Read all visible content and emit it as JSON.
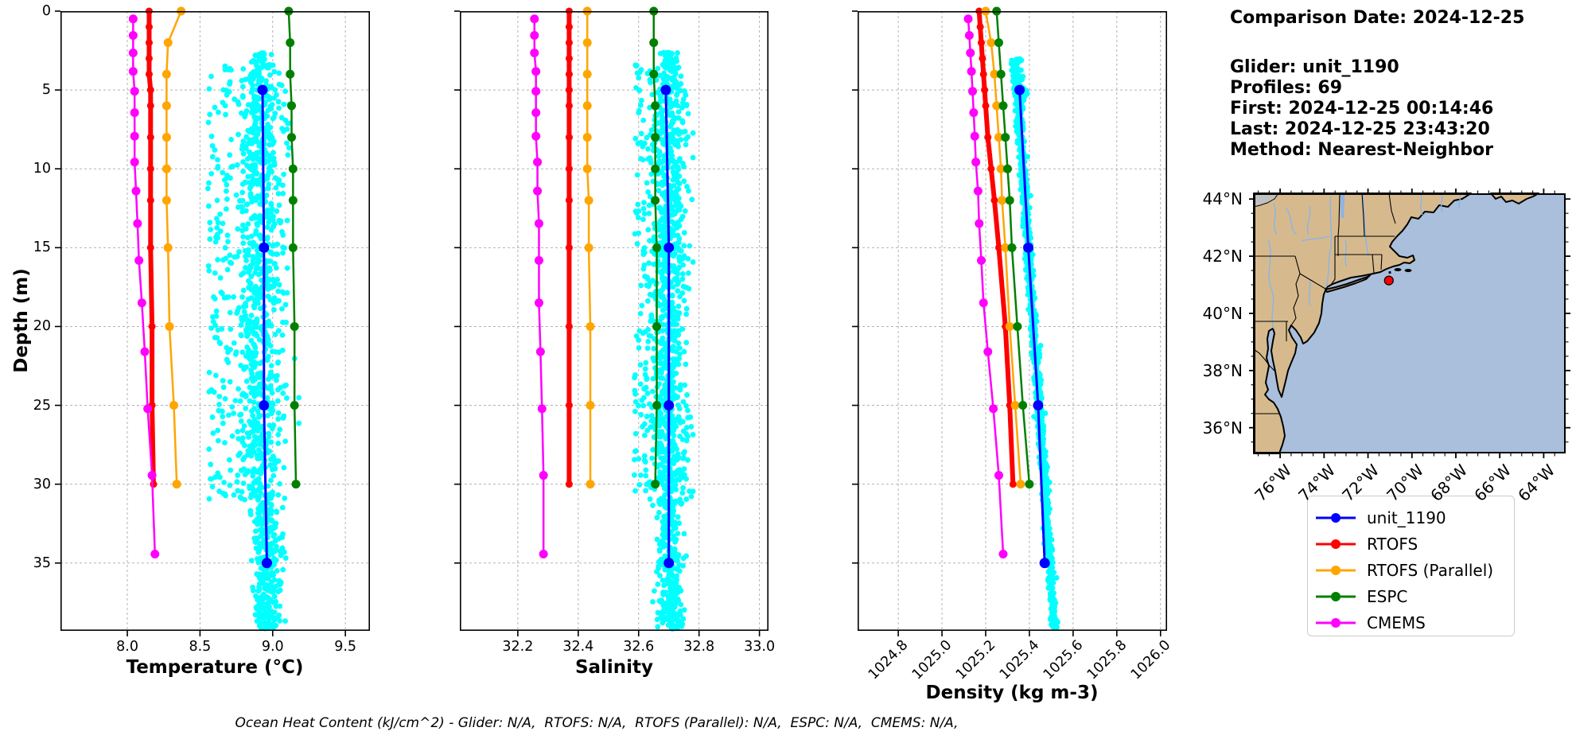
{
  "info_panel": {
    "lines": [
      "Comparison Date: 2024-12-25",
      "Glider: unit_1190",
      "Profiles: 69",
      "First: 2024-12-25 00:14:46",
      "Last: 2024-12-25 23:43:20",
      "Method: Nearest-Neighbor"
    ]
  },
  "footer": {
    "text": "Ocean Heat Content (kJ/cm^2) - Glider: N/A,  RTOFS: N/A,  RTOFS (Parallel): N/A,  ESPC: N/A,  CMEMS: N/A,"
  },
  "legend": {
    "entries": [
      {
        "label": "unit_1190",
        "color": "#0000ff"
      },
      {
        "label": "RTOFS",
        "color": "#ff0000"
      },
      {
        "label": "RTOFS (Parallel)",
        "color": "#ffa500"
      },
      {
        "label": "ESPC",
        "color": "#008000"
      },
      {
        "label": "CMEMS",
        "color": "#ff00ff"
      }
    ]
  },
  "chart_data": [
    {
      "type": "line",
      "name": "temperature-profile",
      "xlabel": "Temperature (°C)",
      "ylabel": "Depth (m)",
      "xlim": [
        7.54,
        9.669
      ],
      "ylim": [
        0,
        39.3
      ],
      "grid": true,
      "xticks": [
        8.0,
        8.5,
        9.0,
        9.5
      ],
      "xtick_labels": [
        "8.0",
        "8.5",
        "9.0",
        "9.5"
      ],
      "yticks": [
        0,
        5,
        10,
        15,
        20,
        25,
        30,
        35
      ],
      "rotate_xticks": false,
      "series": [
        {
          "name": "unit_1190",
          "color": "#0000ff",
          "lw": 3,
          "ms": 6.5,
          "depths": [
            5,
            15,
            25,
            35
          ],
          "values": [
            8.93,
            8.94,
            8.94,
            8.96
          ]
        },
        {
          "name": "RTOFS",
          "color": "#ff0000",
          "lw": 6,
          "ms": 4.5,
          "depths": [
            0,
            1,
            2,
            3,
            4,
            5,
            6,
            8,
            10,
            12,
            15,
            20,
            25,
            30
          ],
          "values": [
            8.15,
            8.15,
            8.15,
            8.15,
            8.15,
            8.16,
            8.16,
            8.16,
            8.16,
            8.16,
            8.16,
            8.17,
            8.17,
            8.18
          ]
        },
        {
          "name": "RTOFS (Parallel)",
          "color": "#ffa500",
          "lw": 2.5,
          "ms": 5.5,
          "depths": [
            0,
            2,
            4,
            6,
            8,
            10,
            12,
            15,
            20,
            25,
            30
          ],
          "values": [
            8.37,
            8.28,
            8.27,
            8.27,
            8.27,
            8.27,
            8.27,
            8.28,
            8.29,
            8.32,
            8.34
          ]
        },
        {
          "name": "ESPC",
          "color": "#008000",
          "lw": 2.5,
          "ms": 5.5,
          "depths": [
            0,
            2,
            4,
            6,
            8,
            10,
            12,
            15,
            20,
            25,
            30
          ],
          "values": [
            9.11,
            9.12,
            9.12,
            9.13,
            9.13,
            9.14,
            9.14,
            9.14,
            9.15,
            9.15,
            9.16
          ]
        },
        {
          "name": "CMEMS",
          "color": "#ff00ff",
          "lw": 2.5,
          "ms": 5.5,
          "depths": [
            0.49,
            1.54,
            2.65,
            3.82,
            5.08,
            6.44,
            7.93,
            9.57,
            11.41,
            13.47,
            15.81,
            18.5,
            21.6,
            25.21,
            29.44,
            34.43
          ],
          "values": [
            8.04,
            8.04,
            8.04,
            8.04,
            8.05,
            8.05,
            8.05,
            8.05,
            8.06,
            8.07,
            8.08,
            8.1,
            8.12,
            8.14,
            8.17,
            8.19
          ]
        }
      ],
      "scatter": {
        "name": "glider-raw-points",
        "color": "#00ffff",
        "r": 3.4,
        "seed": 42,
        "bands": [
          {
            "n": 950,
            "depth": [
              2.6,
              31.0
            ],
            "type": "gauss",
            "center": [
              8.92,
              8.9
            ],
            "sigma": 0.085,
            "clip": [
              8.58,
              9.18
            ],
            "taper": true
          },
          {
            "n": 130,
            "depth": [
              3.0,
              31.0
            ],
            "type": "uniform",
            "range": [
              8.55,
              8.72
            ]
          },
          {
            "n": 300,
            "depth": [
              31.0,
              39.2
            ],
            "type": "gauss",
            "center": [
              8.95,
              8.97
            ],
            "sigma": 0.05,
            "clip": [
              8.75,
              9.12
            ]
          }
        ]
      }
    },
    {
      "type": "line",
      "name": "salinity-profile",
      "xlabel": "Salinity",
      "ylabel": "",
      "xlim": [
        32.008,
        33.03
      ],
      "ylim": [
        0,
        39.3
      ],
      "grid": true,
      "xticks": [
        32.2,
        32.4,
        32.6,
        32.8,
        33.0
      ],
      "xtick_labels": [
        "32.2",
        "32.4",
        "32.6",
        "32.8",
        "33.0"
      ],
      "yticks": [
        0,
        5,
        10,
        15,
        20,
        25,
        30,
        35
      ],
      "rotate_xticks": false,
      "series": [
        {
          "name": "unit_1190",
          "color": "#0000ff",
          "lw": 3,
          "ms": 6.5,
          "depths": [
            5,
            15,
            25,
            35
          ],
          "values": [
            32.69,
            32.7,
            32.7,
            32.7
          ]
        },
        {
          "name": "RTOFS",
          "color": "#ff0000",
          "lw": 6,
          "ms": 4.5,
          "depths": [
            0,
            1,
            2,
            3,
            4,
            5,
            6,
            8,
            10,
            12,
            15,
            20,
            25,
            30
          ],
          "values": [
            32.37,
            32.37,
            32.37,
            32.37,
            32.37,
            32.37,
            32.37,
            32.37,
            32.37,
            32.37,
            32.37,
            32.37,
            32.37,
            32.37
          ]
        },
        {
          "name": "RTOFS (Parallel)",
          "color": "#ffa500",
          "lw": 2.5,
          "ms": 5.5,
          "depths": [
            0,
            2,
            4,
            6,
            8,
            10,
            12,
            15,
            20,
            25,
            30
          ],
          "values": [
            32.43,
            32.43,
            32.43,
            32.43,
            32.43,
            32.43,
            32.435,
            32.435,
            32.44,
            32.44,
            32.44
          ]
        },
        {
          "name": "ESPC",
          "color": "#008000",
          "lw": 2.5,
          "ms": 5.5,
          "depths": [
            0,
            2,
            4,
            6,
            8,
            10,
            12,
            15,
            20,
            25,
            30
          ],
          "values": [
            32.65,
            32.65,
            32.65,
            32.655,
            32.655,
            32.655,
            32.655,
            32.66,
            32.66,
            32.66,
            32.655
          ]
        },
        {
          "name": "CMEMS",
          "color": "#ff00ff",
          "lw": 2.5,
          "ms": 5.5,
          "depths": [
            0.49,
            1.54,
            2.65,
            3.82,
            5.08,
            6.44,
            7.93,
            9.57,
            11.41,
            13.47,
            15.81,
            18.5,
            21.6,
            25.21,
            29.44,
            34.43
          ],
          "values": [
            32.255,
            32.255,
            32.255,
            32.26,
            32.26,
            32.26,
            32.26,
            32.265,
            32.265,
            32.27,
            32.27,
            32.27,
            32.275,
            32.28,
            32.285,
            32.285
          ]
        }
      ],
      "scatter": {
        "name": "glider-raw-points",
        "color": "#00ffff",
        "r": 3.4,
        "seed": 77,
        "bands": [
          {
            "n": 950,
            "depth": [
              2.6,
              31.0
            ],
            "type": "gauss",
            "center": [
              32.7,
              32.7
            ],
            "sigma": 0.03,
            "clip": [
              32.62,
              32.78
            ],
            "taper": true
          },
          {
            "n": 140,
            "depth": [
              3.0,
              31.0
            ],
            "type": "uniform",
            "range": [
              32.585,
              32.655
            ]
          },
          {
            "n": 300,
            "depth": [
              31.0,
              39.2
            ],
            "type": "gauss",
            "center": [
              32.7,
              32.71
            ],
            "sigma": 0.022,
            "clip": [
              32.64,
              32.77
            ]
          }
        ]
      }
    },
    {
      "type": "line",
      "name": "density-profile",
      "xlabel": "Density (kg m-3)",
      "ylabel": "",
      "xlim": [
        1024.614,
        1026.03
      ],
      "ylim": [
        0,
        39.3
      ],
      "grid": true,
      "xticks": [
        1024.8,
        1025.0,
        1025.2,
        1025.4,
        1025.6,
        1025.8,
        1026.0
      ],
      "xtick_labels": [
        "1024.8",
        "1025.0",
        "1025.2",
        "1025.4",
        "1025.6",
        "1025.8",
        "1026.0"
      ],
      "yticks": [
        0,
        5,
        10,
        15,
        20,
        25,
        30,
        35
      ],
      "rotate_xticks": true,
      "series": [
        {
          "name": "unit_1190",
          "color": "#0000ff",
          "lw": 3,
          "ms": 6.5,
          "depths": [
            5,
            15,
            25,
            35
          ],
          "values": [
            1025.355,
            1025.395,
            1025.44,
            1025.47
          ]
        },
        {
          "name": "RTOFS",
          "color": "#ff0000",
          "lw": 6,
          "ms": 4.5,
          "depths": [
            0,
            1,
            2,
            3,
            4,
            5,
            6,
            8,
            10,
            12,
            15,
            20,
            25,
            30
          ],
          "values": [
            1025.17,
            1025.175,
            1025.18,
            1025.185,
            1025.19,
            1025.195,
            1025.2,
            1025.21,
            1025.225,
            1025.24,
            1025.26,
            1025.29,
            1025.31,
            1025.325
          ]
        },
        {
          "name": "RTOFS (Parallel)",
          "color": "#ffa500",
          "lw": 2.5,
          "ms": 5.5,
          "depths": [
            0,
            2,
            4,
            6,
            8,
            10,
            12,
            15,
            20,
            25,
            30
          ],
          "values": [
            1025.2,
            1025.225,
            1025.24,
            1025.25,
            1025.26,
            1025.27,
            1025.275,
            1025.29,
            1025.31,
            1025.335,
            1025.36
          ]
        },
        {
          "name": "ESPC",
          "color": "#008000",
          "lw": 2.5,
          "ms": 5.5,
          "depths": [
            0,
            2,
            4,
            6,
            8,
            10,
            12,
            15,
            20,
            25,
            30
          ],
          "values": [
            1025.25,
            1025.26,
            1025.27,
            1025.28,
            1025.29,
            1025.3,
            1025.31,
            1025.32,
            1025.345,
            1025.37,
            1025.4
          ]
        },
        {
          "name": "CMEMS",
          "color": "#ff00ff",
          "lw": 2.5,
          "ms": 5.5,
          "depths": [
            0.49,
            1.54,
            2.65,
            3.82,
            5.08,
            6.44,
            7.93,
            9.57,
            11.41,
            13.47,
            15.81,
            18.5,
            21.6,
            25.21,
            29.44,
            34.43
          ],
          "values": [
            1025.12,
            1025.125,
            1025.13,
            1025.135,
            1025.14,
            1025.145,
            1025.15,
            1025.155,
            1025.165,
            1025.17,
            1025.18,
            1025.19,
            1025.21,
            1025.235,
            1025.26,
            1025.28
          ]
        }
      ],
      "scatter": {
        "name": "glider-raw-points",
        "color": "#00ffff",
        "r": 3.4,
        "seed": 101,
        "bands": [
          {
            "n": 1050,
            "depth": [
              3.0,
              39.2
            ],
            "type": "gauss",
            "center": [
              1025.335,
              1025.515
            ],
            "sigma": 0.008,
            "clip": [
              1025.3,
              1025.55
            ]
          },
          {
            "n": 90,
            "depth": [
              3.0,
              6.0
            ],
            "type": "gauss",
            "center": [
              1025.345,
              1025.355
            ],
            "sigma": 0.013,
            "clip": [
              1025.31,
              1025.4
            ]
          }
        ]
      }
    }
  ],
  "map": {
    "extent": {
      "lon_min": -77.2,
      "lon_max": -63.0,
      "lat_min": 35.1,
      "lat_max": 44.2
    },
    "lat_ticks": [
      {
        "value": 44,
        "label": "44°N"
      },
      {
        "value": 42,
        "label": "42°N"
      },
      {
        "value": 40,
        "label": "40°N"
      },
      {
        "value": 38,
        "label": "38°N"
      },
      {
        "value": 36,
        "label": "36°N"
      }
    ],
    "lon_ticks": [
      {
        "value": -76,
        "label": "76°W"
      },
      {
        "value": -74,
        "label": "74°W"
      },
      {
        "value": -72,
        "label": "72°W"
      },
      {
        "value": -70,
        "label": "70°W"
      },
      {
        "value": -68,
        "label": "68°W"
      },
      {
        "value": -66,
        "label": "66°W"
      },
      {
        "value": -64,
        "label": "64°W"
      }
    ],
    "marker": {
      "lon": -71.05,
      "lat": 41.15,
      "color": "#ff0000"
    },
    "colors": {
      "ocean": "#a9bfdc",
      "land": "#d6ba8e",
      "coast": "#000000",
      "river": "#8ab4e8",
      "gray_region": "#c0c0c0"
    }
  }
}
